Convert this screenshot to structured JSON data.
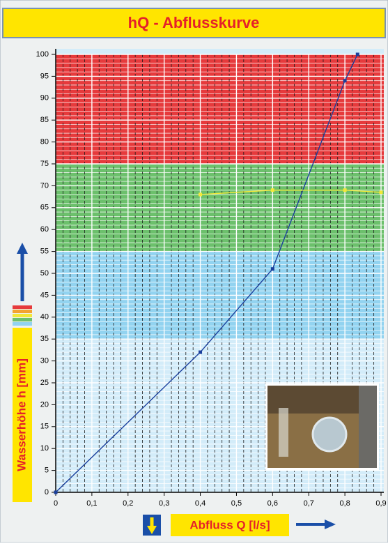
{
  "chart_data": {
    "type": "line",
    "title": "hQ - Abflusskurve",
    "x_label": "Abfluss Q [l/s]",
    "y_label": "Wasserhöhe h [mm]",
    "xlim": [
      0,
      0.9
    ],
    "ylim": [
      0,
      100
    ],
    "xticks": [
      0,
      {
        "value": 0.1,
        "label": "0,1"
      },
      {
        "value": 0.2,
        "label": "0,2"
      },
      {
        "value": 0.3,
        "label": "0,3"
      },
      {
        "value": 0.4,
        "label": "0,4"
      },
      {
        "value": 0.5,
        "label": "0,5"
      },
      {
        "value": 0.6,
        "label": "0,6"
      },
      {
        "value": 0.7,
        "label": "0,7"
      },
      {
        "value": 0.8,
        "label": "0,8"
      },
      {
        "value": 0.9,
        "label": "0,9"
      }
    ],
    "yticks": [
      0,
      5,
      10,
      15,
      20,
      25,
      30,
      35,
      40,
      45,
      50,
      55,
      60,
      65,
      70,
      75,
      80,
      85,
      90,
      95,
      100
    ],
    "bands": [
      {
        "from": 0,
        "to": 35,
        "color": "#d3ecf9"
      },
      {
        "from": 35,
        "to": 55,
        "color": "#92d3f0"
      },
      {
        "from": 55,
        "to": 75,
        "color": "#6cc06c"
      },
      {
        "from": 75,
        "to": 100,
        "color": "#e63a3c"
      }
    ],
    "grid": true,
    "series": [
      {
        "color": "#1a3f9c",
        "x": [
          0,
          0.4,
          0.6,
          0.8,
          0.835
        ],
        "values": [
          0,
          32,
          51,
          94,
          100
        ]
      },
      {
        "color": "#f2e93a",
        "x": [
          0.4,
          0.6,
          0.8,
          0.9
        ],
        "values": [
          68,
          69,
          69,
          68.5
        ]
      }
    ]
  }
}
